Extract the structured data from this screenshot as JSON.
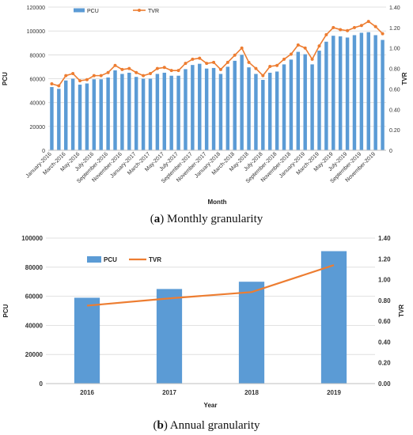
{
  "captions": {
    "a_letter": "a",
    "a_text": " Monthly granularity",
    "b_letter": "b",
    "b_text": " Annual granularity"
  },
  "colors": {
    "bar": "#5b9bd5",
    "line": "#ed7d31",
    "grid": "#d9d9d9"
  },
  "chart_data": [
    {
      "type": "bar",
      "subtype": "bar+line, dual axis",
      "xlabel": "Month",
      "ylabel": "PCU",
      "y2label": "TVR",
      "ylim": [
        0,
        120000
      ],
      "y2lim": [
        0,
        1.4
      ],
      "yticks": [
        "0",
        "20000",
        "40000",
        "60000",
        "80000",
        "100000",
        "120000"
      ],
      "y2ticks": [
        "0",
        "0.20",
        "0.40",
        "0.60",
        "0.80",
        "1.00",
        "1.20",
        "1.40"
      ],
      "legend": [
        "PCU",
        "TVR"
      ],
      "legend_position": "top-left",
      "categories": [
        "January-2016",
        "February-2016",
        "March-2016",
        "April-2016",
        "May-2016",
        "June-2016",
        "July-2016",
        "August-2016",
        "September-2016",
        "October-2016",
        "November-2016",
        "December-2016",
        "January-2017",
        "February-2017",
        "March-2017",
        "April-2017",
        "May-2017",
        "June-2017",
        "July-2017",
        "August-2017",
        "September-2017",
        "October-2017",
        "November-2017",
        "December-2017",
        "January-2018",
        "February-2018",
        "March-2018",
        "April-2018",
        "May-2018",
        "June-2018",
        "July-2018",
        "August-2018",
        "September-2018",
        "October-2018",
        "November-2018",
        "December-2018",
        "January-2019",
        "February-2019",
        "March-2019",
        "April-2019",
        "May-2019",
        "June-2019",
        "July-2019",
        "August-2019",
        "September-2019",
        "October-2019",
        "November-2019",
        "December-2019"
      ],
      "xtick_labels": [
        "January-2016",
        "March-2016",
        "May-2016",
        "July-2016",
        "September-2016",
        "November-2016",
        "January-2017",
        "March-2017",
        "May-2017",
        "July-2017",
        "September-2017",
        "November-2017",
        "January-2018",
        "March-2018",
        "May-2018",
        "July-2018",
        "September-2018",
        "November-2018",
        "January-2019",
        "March-2019",
        "May-2019",
        "July-2019",
        "September-2019",
        "November-2019"
      ],
      "series": [
        {
          "name": "PCU",
          "type": "bar",
          "axis": "left",
          "values": [
            53000,
            51500,
            58500,
            60000,
            55000,
            56000,
            59500,
            59500,
            61000,
            67000,
            64000,
            65000,
            61500,
            60000,
            60000,
            64000,
            65000,
            62500,
            62500,
            68000,
            71500,
            72500,
            68500,
            69000,
            64000,
            70000,
            75000,
            80000,
            69500,
            64000,
            59000,
            65000,
            66000,
            72000,
            76000,
            82500,
            80500,
            72000,
            83500,
            91000,
            96000,
            95500,
            94500,
            96500,
            98500,
            99000,
            96500,
            92500
          ]
        },
        {
          "name": "TVR",
          "type": "line",
          "axis": "right",
          "values": [
            0.65,
            0.63,
            0.73,
            0.75,
            0.68,
            0.69,
            0.73,
            0.73,
            0.76,
            0.83,
            0.79,
            0.8,
            0.76,
            0.73,
            0.75,
            0.8,
            0.81,
            0.78,
            0.78,
            0.85,
            0.89,
            0.9,
            0.85,
            0.86,
            0.79,
            0.86,
            0.93,
            1.0,
            0.86,
            0.8,
            0.73,
            0.82,
            0.83,
            0.89,
            0.94,
            1.03,
            1.0,
            0.89,
            1.02,
            1.13,
            1.2,
            1.18,
            1.17,
            1.2,
            1.22,
            1.26,
            1.21,
            1.14
          ]
        }
      ]
    },
    {
      "type": "bar",
      "subtype": "bar+line, dual axis",
      "xlabel": "Year",
      "ylabel": "PCU",
      "y2label": "TVR",
      "ylim": [
        0,
        100000
      ],
      "y2lim": [
        0,
        1.4
      ],
      "yticks": [
        "0",
        "20000",
        "40000",
        "60000",
        "80000",
        "100000"
      ],
      "y2ticks": [
        "0.00",
        "0.20",
        "0.40",
        "0.60",
        "0.80",
        "1.00",
        "1.20",
        "1.40"
      ],
      "legend": [
        "PCU",
        "TVR"
      ],
      "legend_position": "top-left",
      "categories": [
        "2016",
        "2017",
        "2018",
        "2019"
      ],
      "series": [
        {
          "name": "PCU",
          "type": "bar",
          "axis": "left",
          "values": [
            59000,
            65000,
            70000,
            91000
          ]
        },
        {
          "name": "TVR",
          "type": "line",
          "axis": "right",
          "values": [
            0.75,
            0.82,
            0.88,
            1.14
          ]
        }
      ]
    }
  ]
}
